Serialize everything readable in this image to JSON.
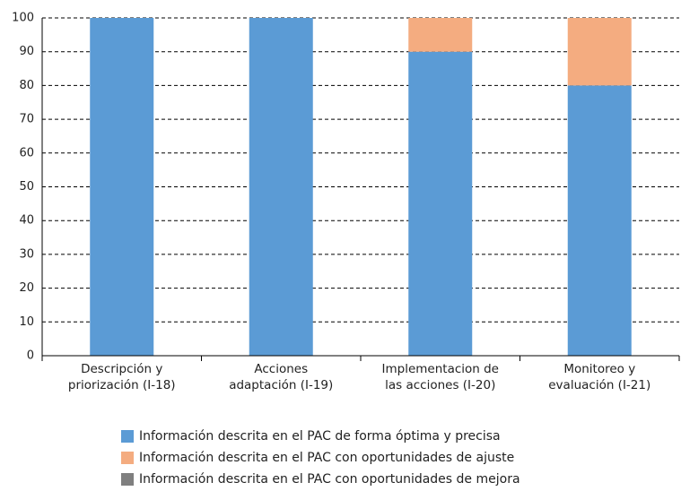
{
  "chart_data": {
    "type": "stacked_bar",
    "categories": [
      "Descripción y\npriorización (I-18)",
      "Acciones\nadaptación (I-19)",
      "Implementacion de\nlas acciones (I-20)",
      "Monitoreo y\nevaluación (I-21)"
    ],
    "series": [
      {
        "name": "Información descrita en el PAC de forma óptima y precisa",
        "color": "#5b9bd5",
        "values": [
          100,
          100,
          90,
          80
        ]
      },
      {
        "name": "Información descrita en el PAC con oportunidades de ajuste",
        "color": "#f4ac80",
        "values": [
          0,
          0,
          10,
          20
        ]
      },
      {
        "name": "Información descrita en el PAC con oportunidades de mejora",
        "color": "#7f7f7f",
        "values": [
          0,
          0,
          0,
          0
        ]
      }
    ],
    "ylim": [
      0,
      100
    ],
    "yticks": [
      0,
      10,
      20,
      30,
      40,
      50,
      60,
      70,
      80,
      90,
      100
    ],
    "grid": true
  }
}
